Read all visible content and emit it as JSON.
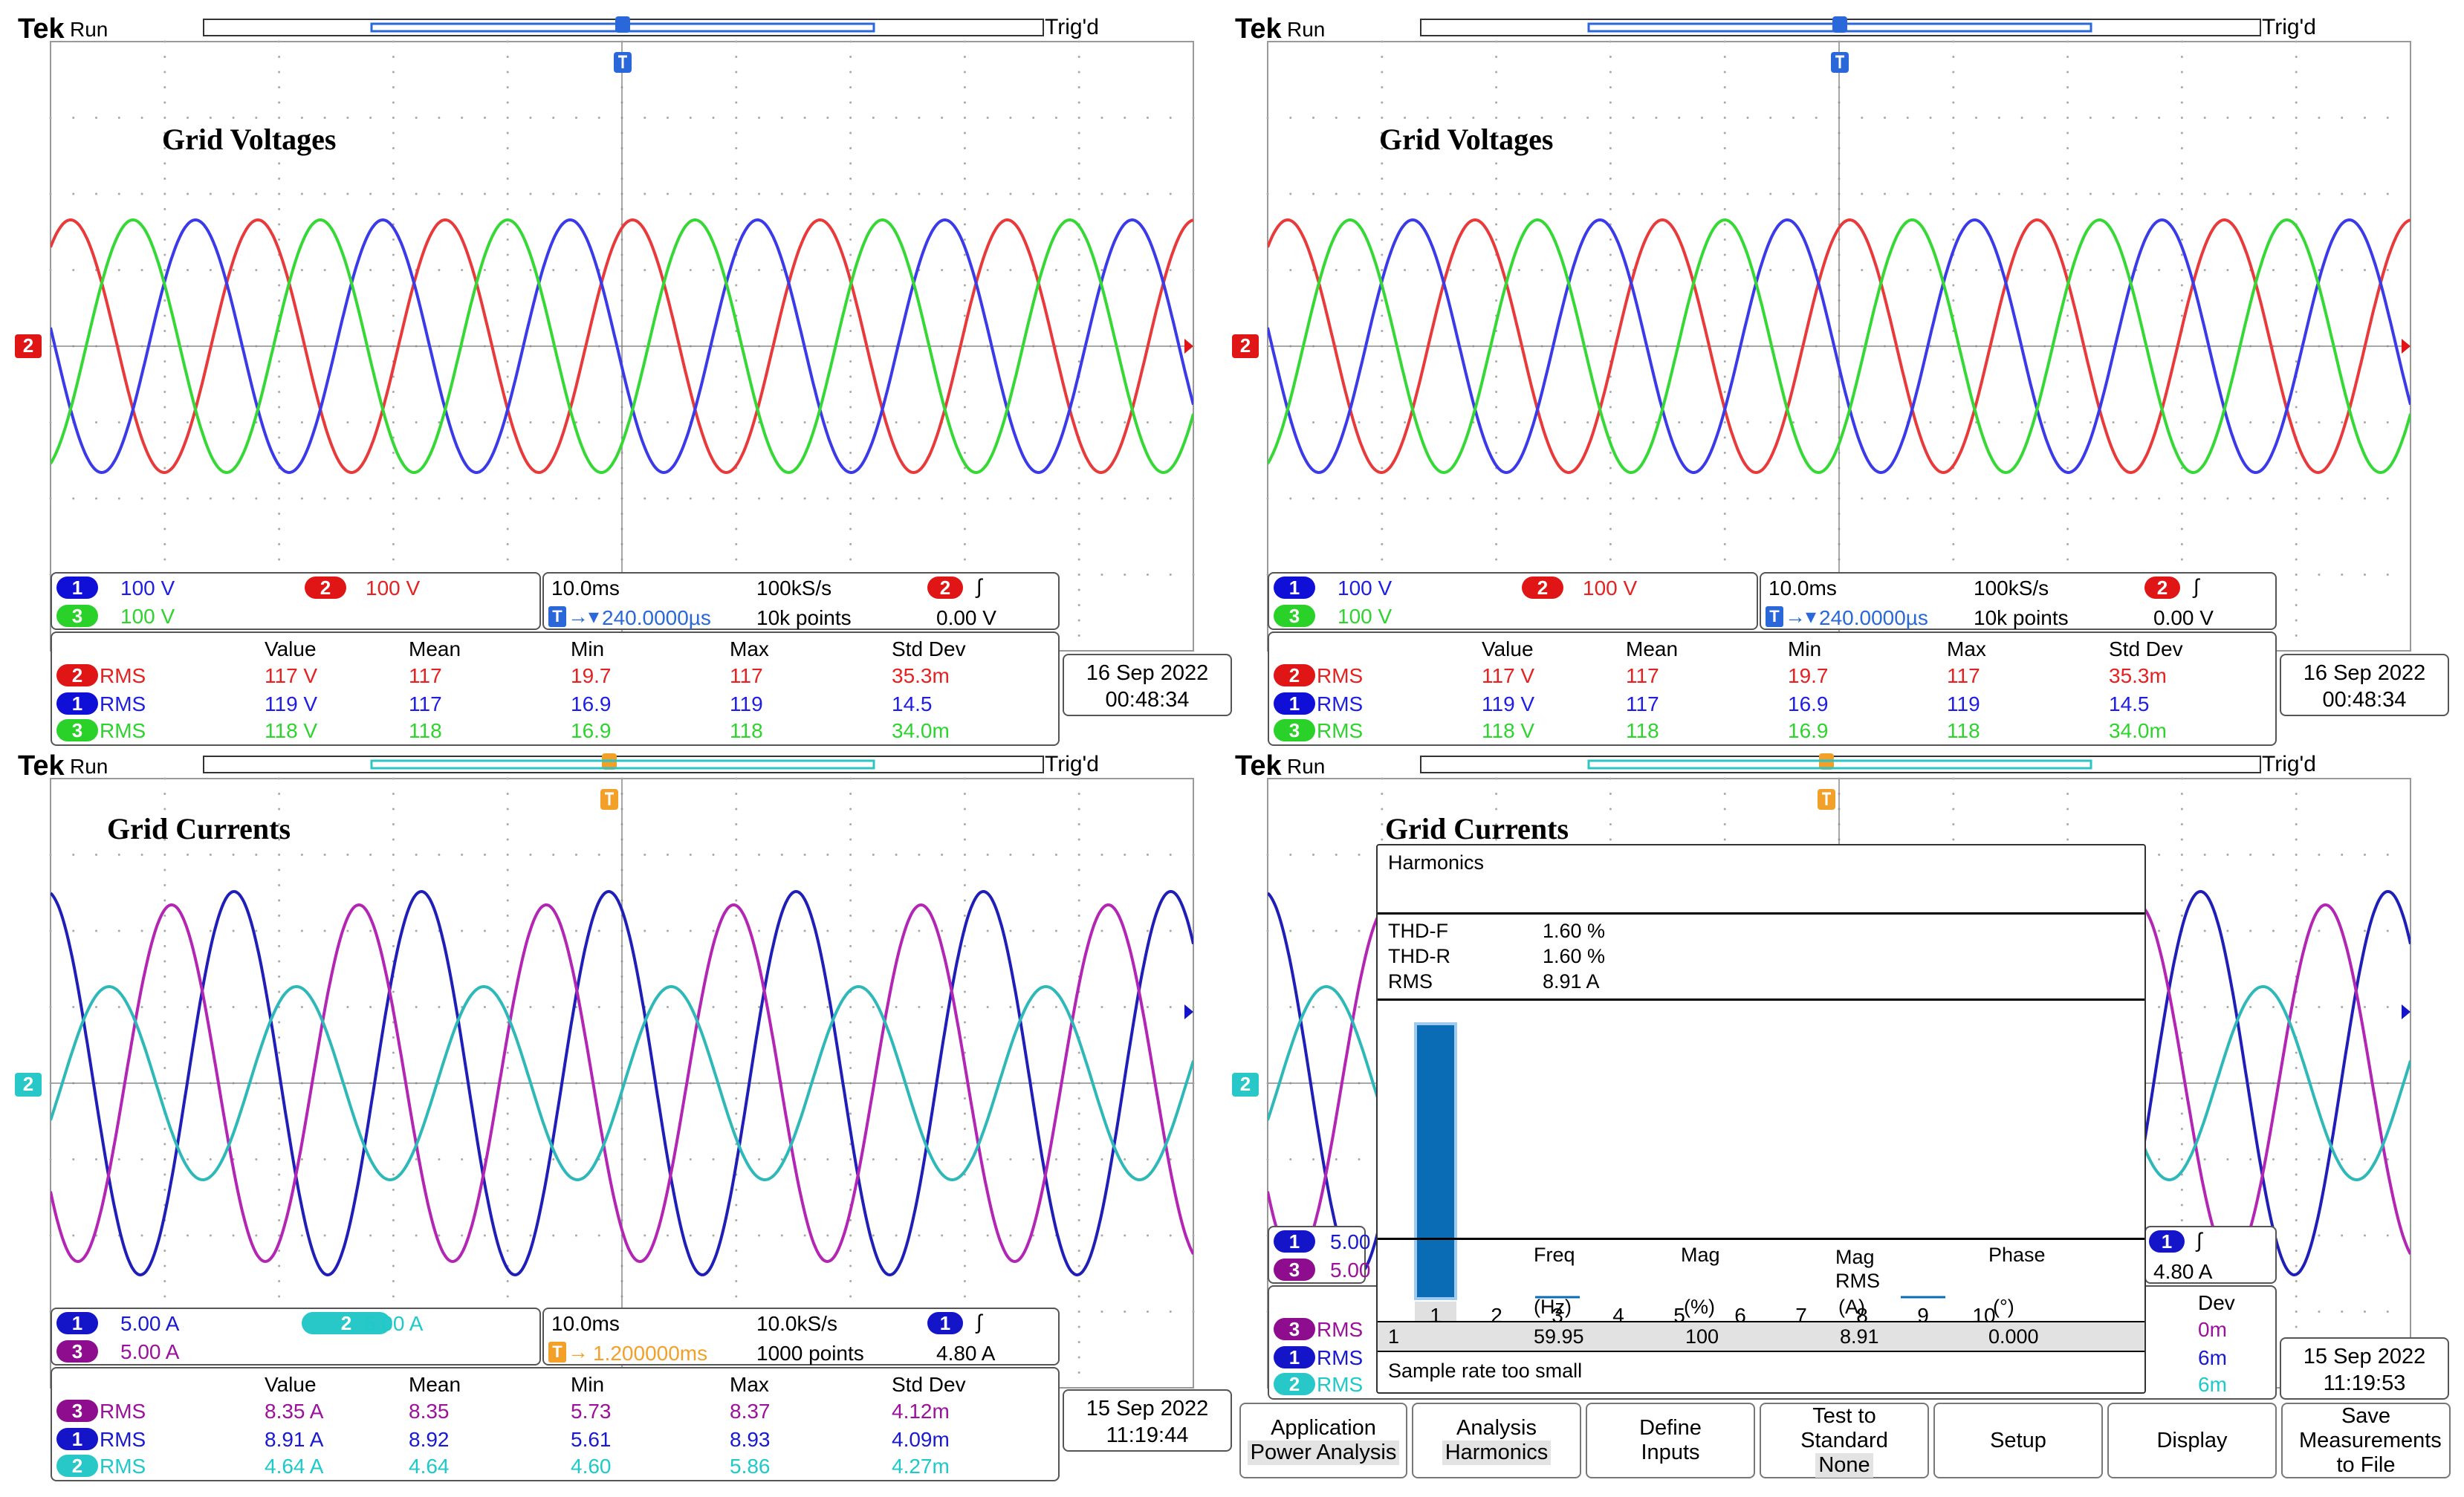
{
  "brand": "Tek",
  "status": "Run",
  "trig_status": "Trig'd",
  "scopes": [
    {
      "id": "tl",
      "title": "Grid Voltages",
      "channels": [
        {
          "num": "1",
          "scale": "100 V",
          "color": "#1d1de6"
        },
        {
          "num": "2",
          "scale": "100 V",
          "color": "#e52121"
        },
        {
          "num": "3",
          "scale": "100 V",
          "color": "#2ed42e"
        }
      ],
      "timebase": {
        "div": "10.0ms",
        "rate": "100kS/s",
        "delay": "240.0000µs",
        "points": "10k points",
        "trig_ch": "2",
        "trig_level": "0.00 V"
      },
      "meas_header": [
        "Value",
        "Mean",
        "Min",
        "Max",
        "Std Dev"
      ],
      "meas": [
        {
          "ch": "2",
          "type": "RMS",
          "value": "117 V",
          "mean": "117",
          "min": "19.7",
          "max": "117",
          "std": "35.3m"
        },
        {
          "ch": "1",
          "type": "RMS",
          "value": "119 V",
          "mean": "117",
          "min": "16.9",
          "max": "119",
          "std": "14.5"
        },
        {
          "ch": "3",
          "type": "RMS",
          "value": "118 V",
          "mean": "118",
          "min": "16.9",
          "max": "118",
          "std": "34.0m"
        }
      ],
      "date": "16 Sep 2022",
      "time": "00:48:34",
      "level_marker": "2"
    },
    {
      "id": "tr",
      "title": "Grid Voltages",
      "channels": [
        {
          "num": "1",
          "scale": "100 V",
          "color": "#1d1de6"
        },
        {
          "num": "2",
          "scale": "100 V",
          "color": "#e52121"
        },
        {
          "num": "3",
          "scale": "100 V",
          "color": "#2ed42e"
        }
      ],
      "timebase": {
        "div": "10.0ms",
        "rate": "100kS/s",
        "delay": "240.0000µs",
        "points": "10k points",
        "trig_ch": "2",
        "trig_level": "0.00 V"
      },
      "meas_header": [
        "Value",
        "Mean",
        "Min",
        "Max",
        "Std Dev"
      ],
      "meas": [
        {
          "ch": "2",
          "type": "RMS",
          "value": "117 V",
          "mean": "117",
          "min": "19.7",
          "max": "117",
          "std": "35.3m"
        },
        {
          "ch": "1",
          "type": "RMS",
          "value": "119 V",
          "mean": "117",
          "min": "16.9",
          "max": "119",
          "std": "14.5"
        },
        {
          "ch": "3",
          "type": "RMS",
          "value": "118 V",
          "mean": "118",
          "min": "16.9",
          "max": "118",
          "std": "34.0m"
        }
      ],
      "date": "16 Sep 2022",
      "time": "00:48:34",
      "level_marker": "2"
    },
    {
      "id": "bl",
      "title": "Grid Currents",
      "channels": [
        {
          "num": "1",
          "scale": "5.00 A",
          "color": "#1919cf"
        },
        {
          "num": "2",
          "scale": "5.00 A",
          "color": "#1fc9c9"
        },
        {
          "num": "3",
          "scale": "5.00 A",
          "color": "#9b119b"
        }
      ],
      "timebase": {
        "div": "10.0ms",
        "rate": "10.0kS/s",
        "delay": "1.200000ms",
        "points": "1000 points",
        "trig_ch": "1",
        "trig_level": "4.80 A"
      },
      "meas_header": [
        "Value",
        "Mean",
        "Min",
        "Max",
        "Std Dev"
      ],
      "meas": [
        {
          "ch": "3",
          "type": "RMS",
          "value": "8.35 A",
          "mean": "8.35",
          "min": "5.73",
          "max": "8.37",
          "std": "4.12m"
        },
        {
          "ch": "1",
          "type": "RMS",
          "value": "8.91 A",
          "mean": "8.92",
          "min": "5.61",
          "max": "8.93",
          "std": "4.09m"
        },
        {
          "ch": "2",
          "type": "RMS",
          "value": "4.64 A",
          "mean": "4.64",
          "min": "4.60",
          "max": "5.86",
          "std": "4.27m"
        }
      ],
      "date": "15 Sep 2022",
      "time": "11:19:44",
      "level_marker": "2"
    },
    {
      "id": "br",
      "title": "Grid Currents",
      "channels": [
        {
          "num": "1",
          "scale": "5.00",
          "color": "#1919cf"
        },
        {
          "num": "3",
          "scale": "5.00",
          "color": "#9b119b"
        }
      ],
      "timebase": {
        "trig_ch": "1",
        "trig_level": "4.80 A"
      },
      "meas_header_partial": "Dev",
      "meas_partial": [
        {
          "ch": "3",
          "type": "RMS",
          "std": "0m"
        },
        {
          "ch": "1",
          "type": "RMS",
          "std": "6m"
        },
        {
          "ch": "2",
          "type": "RMS",
          "std": "6m"
        }
      ],
      "date": "15 Sep 2022",
      "time": "11:19:53",
      "level_marker": "2"
    }
  ],
  "harmonics": {
    "title": "Harmonics",
    "thd_f_label": "THD-F",
    "thd_f": "1.60 %",
    "thd_r_label": "THD-R",
    "thd_r": "1.60 %",
    "rms_label": "RMS",
    "rms": "8.91 A",
    "chart_data": {
      "type": "bar",
      "categories": [
        "1",
        "2",
        "3",
        "4",
        "5",
        "6",
        "7",
        "8",
        "9",
        "10"
      ],
      "values": [
        100,
        0,
        1.1,
        0,
        0,
        0,
        0,
        0,
        0.9,
        0
      ],
      "selected": "1",
      "ylim": [
        0,
        100
      ]
    },
    "table_headers": [
      "Freq",
      "Mag",
      "Mag RMS",
      "Phase"
    ],
    "table_units": [
      "(Hz)",
      "(%)",
      "(A)",
      "(°)"
    ],
    "table_row": {
      "n": "1",
      "freq": "59.95",
      "mag": "100",
      "magrms": "8.91",
      "phase": "0.000"
    },
    "note": "Sample rate too small"
  },
  "buttons": [
    {
      "label": "Application",
      "sub": "Power Analysis"
    },
    {
      "label": "Analysis",
      "sub": "Harmonics"
    },
    {
      "label": "Define Inputs",
      "sub": ""
    },
    {
      "label": "Test to Standard",
      "sub": "None"
    },
    {
      "label": "Setup",
      "sub": ""
    },
    {
      "label": "Display",
      "sub": ""
    },
    {
      "label": "Save Measurements to File",
      "sub": ""
    }
  ]
}
